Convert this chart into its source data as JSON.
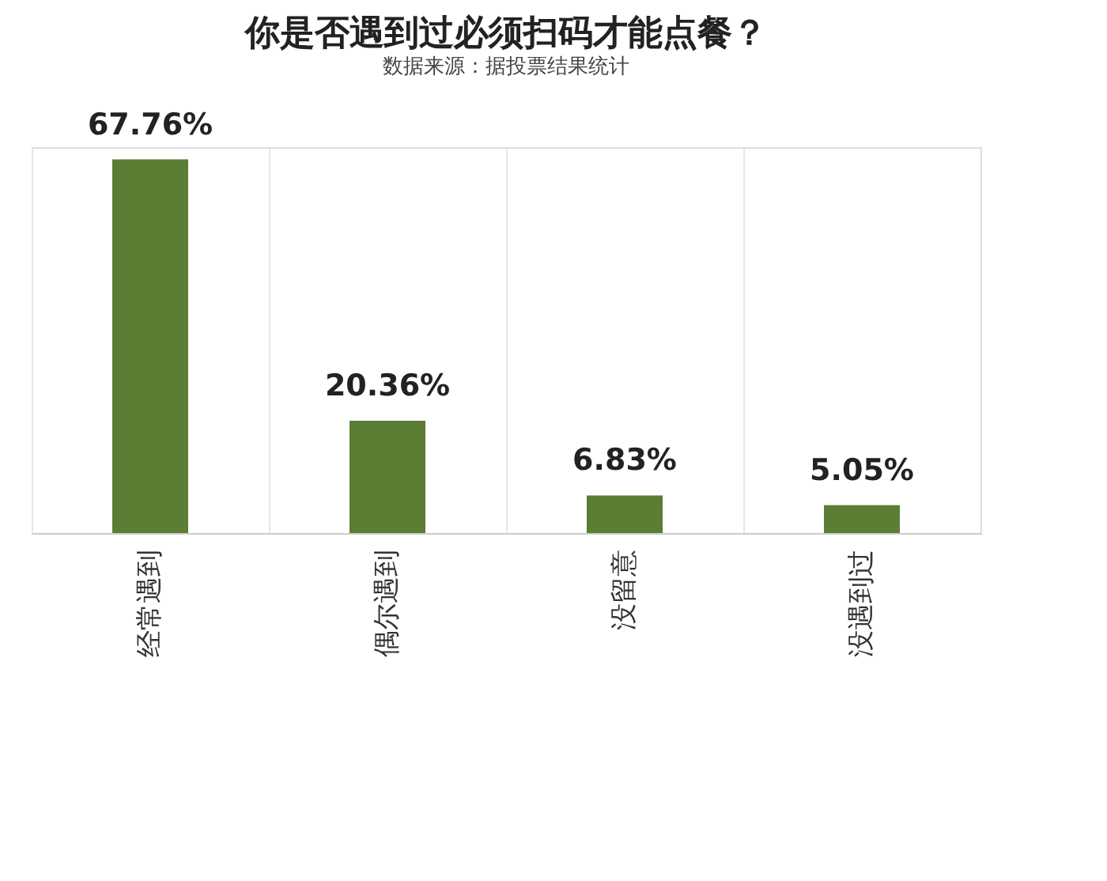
{
  "chart_data": {
    "type": "bar",
    "title": "你是否遇到过必须扫码才能点餐？",
    "categories": [
      "经常遇到",
      "偶尔遇到",
      "没留意",
      "没遇到过"
    ],
    "values": [
      67.76,
      20.36,
      6.83,
      5.05
    ],
    "value_labels": [
      "67.76%",
      "20.36%",
      "6.83%",
      "5.05%"
    ],
    "color": "#5b7d34",
    "grid": "x",
    "tick_labels": "x",
    "annotations": [
      "数据来源：据投票结果统计"
    ]
  }
}
